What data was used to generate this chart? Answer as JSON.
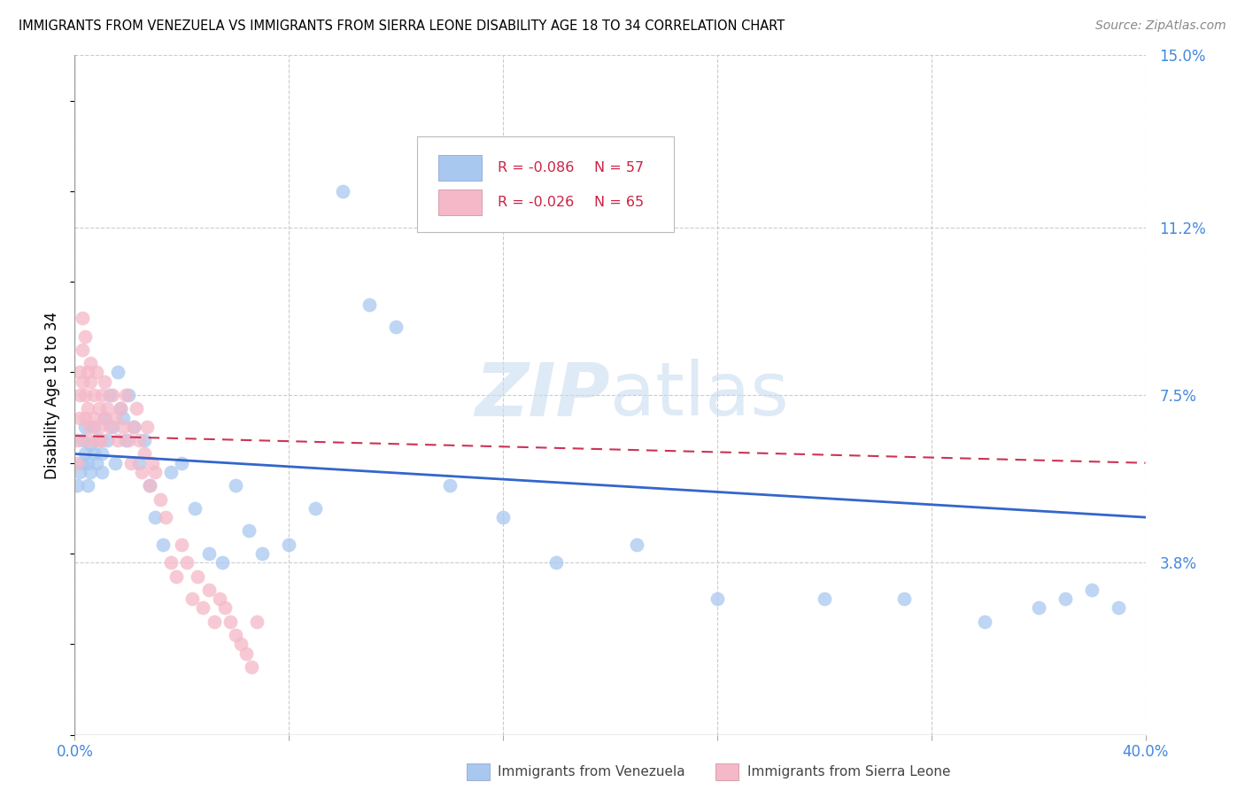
{
  "title": "IMMIGRANTS FROM VENEZUELA VS IMMIGRANTS FROM SIERRA LEONE DISABILITY AGE 18 TO 34 CORRELATION CHART",
  "source": "Source: ZipAtlas.com",
  "ylabel": "Disability Age 18 to 34",
  "xlim": [
    0.0,
    0.4
  ],
  "ylim": [
    0.0,
    0.15
  ],
  "y_tick_labels_right": [
    "3.8%",
    "7.5%",
    "11.2%",
    "15.0%"
  ],
  "y_tick_values_right": [
    0.038,
    0.075,
    0.112,
    0.15
  ],
  "legend_label1": "Immigrants from Venezuela",
  "legend_label2": "Immigrants from Sierra Leone",
  "legend_R1": "R = -0.086",
  "legend_N1": "N = 57",
  "legend_R2": "R = -0.026",
  "legend_N2": "N = 65",
  "color_venezuela": "#a8c8f0",
  "color_sierra_leone": "#f5b8c8",
  "color_venezuela_line": "#3366cc",
  "color_sierra_leone_line": "#cc3355",
  "watermark_color": "#c8ddf0",
  "venezuela_x": [
    0.001,
    0.002,
    0.003,
    0.003,
    0.004,
    0.004,
    0.005,
    0.005,
    0.006,
    0.006,
    0.007,
    0.007,
    0.008,
    0.009,
    0.01,
    0.01,
    0.011,
    0.012,
    0.013,
    0.014,
    0.015,
    0.016,
    0.017,
    0.018,
    0.019,
    0.02,
    0.022,
    0.024,
    0.026,
    0.028,
    0.03,
    0.033,
    0.036,
    0.04,
    0.045,
    0.05,
    0.055,
    0.06,
    0.065,
    0.07,
    0.08,
    0.09,
    0.1,
    0.11,
    0.12,
    0.14,
    0.16,
    0.18,
    0.21,
    0.24,
    0.28,
    0.31,
    0.34,
    0.36,
    0.37,
    0.38,
    0.39
  ],
  "venezuela_y": [
    0.055,
    0.058,
    0.06,
    0.065,
    0.062,
    0.068,
    0.055,
    0.06,
    0.058,
    0.064,
    0.062,
    0.068,
    0.06,
    0.065,
    0.058,
    0.062,
    0.07,
    0.065,
    0.075,
    0.068,
    0.06,
    0.08,
    0.072,
    0.07,
    0.065,
    0.075,
    0.068,
    0.06,
    0.065,
    0.055,
    0.048,
    0.042,
    0.058,
    0.06,
    0.05,
    0.04,
    0.038,
    0.055,
    0.045,
    0.04,
    0.042,
    0.05,
    0.12,
    0.095,
    0.09,
    0.055,
    0.048,
    0.038,
    0.042,
    0.03,
    0.03,
    0.03,
    0.025,
    0.028,
    0.03,
    0.032,
    0.028
  ],
  "sierra_leone_x": [
    0.001,
    0.001,
    0.002,
    0.002,
    0.002,
    0.003,
    0.003,
    0.003,
    0.004,
    0.004,
    0.004,
    0.005,
    0.005,
    0.005,
    0.006,
    0.006,
    0.006,
    0.007,
    0.007,
    0.008,
    0.008,
    0.009,
    0.009,
    0.01,
    0.01,
    0.011,
    0.011,
    0.012,
    0.013,
    0.014,
    0.015,
    0.016,
    0.017,
    0.018,
    0.019,
    0.02,
    0.021,
    0.022,
    0.023,
    0.024,
    0.025,
    0.026,
    0.027,
    0.028,
    0.029,
    0.03,
    0.032,
    0.034,
    0.036,
    0.038,
    0.04,
    0.042,
    0.044,
    0.046,
    0.048,
    0.05,
    0.052,
    0.054,
    0.056,
    0.058,
    0.06,
    0.062,
    0.064,
    0.066,
    0.068
  ],
  "sierra_leone_y": [
    0.06,
    0.065,
    0.075,
    0.08,
    0.07,
    0.085,
    0.078,
    0.092,
    0.088,
    0.07,
    0.075,
    0.08,
    0.065,
    0.072,
    0.078,
    0.068,
    0.082,
    0.075,
    0.07,
    0.065,
    0.08,
    0.072,
    0.068,
    0.075,
    0.065,
    0.07,
    0.078,
    0.072,
    0.068,
    0.075,
    0.07,
    0.065,
    0.072,
    0.068,
    0.075,
    0.065,
    0.06,
    0.068,
    0.072,
    0.065,
    0.058,
    0.062,
    0.068,
    0.055,
    0.06,
    0.058,
    0.052,
    0.048,
    0.038,
    0.035,
    0.042,
    0.038,
    0.03,
    0.035,
    0.028,
    0.032,
    0.025,
    0.03,
    0.028,
    0.025,
    0.022,
    0.02,
    0.018,
    0.015,
    0.025
  ]
}
